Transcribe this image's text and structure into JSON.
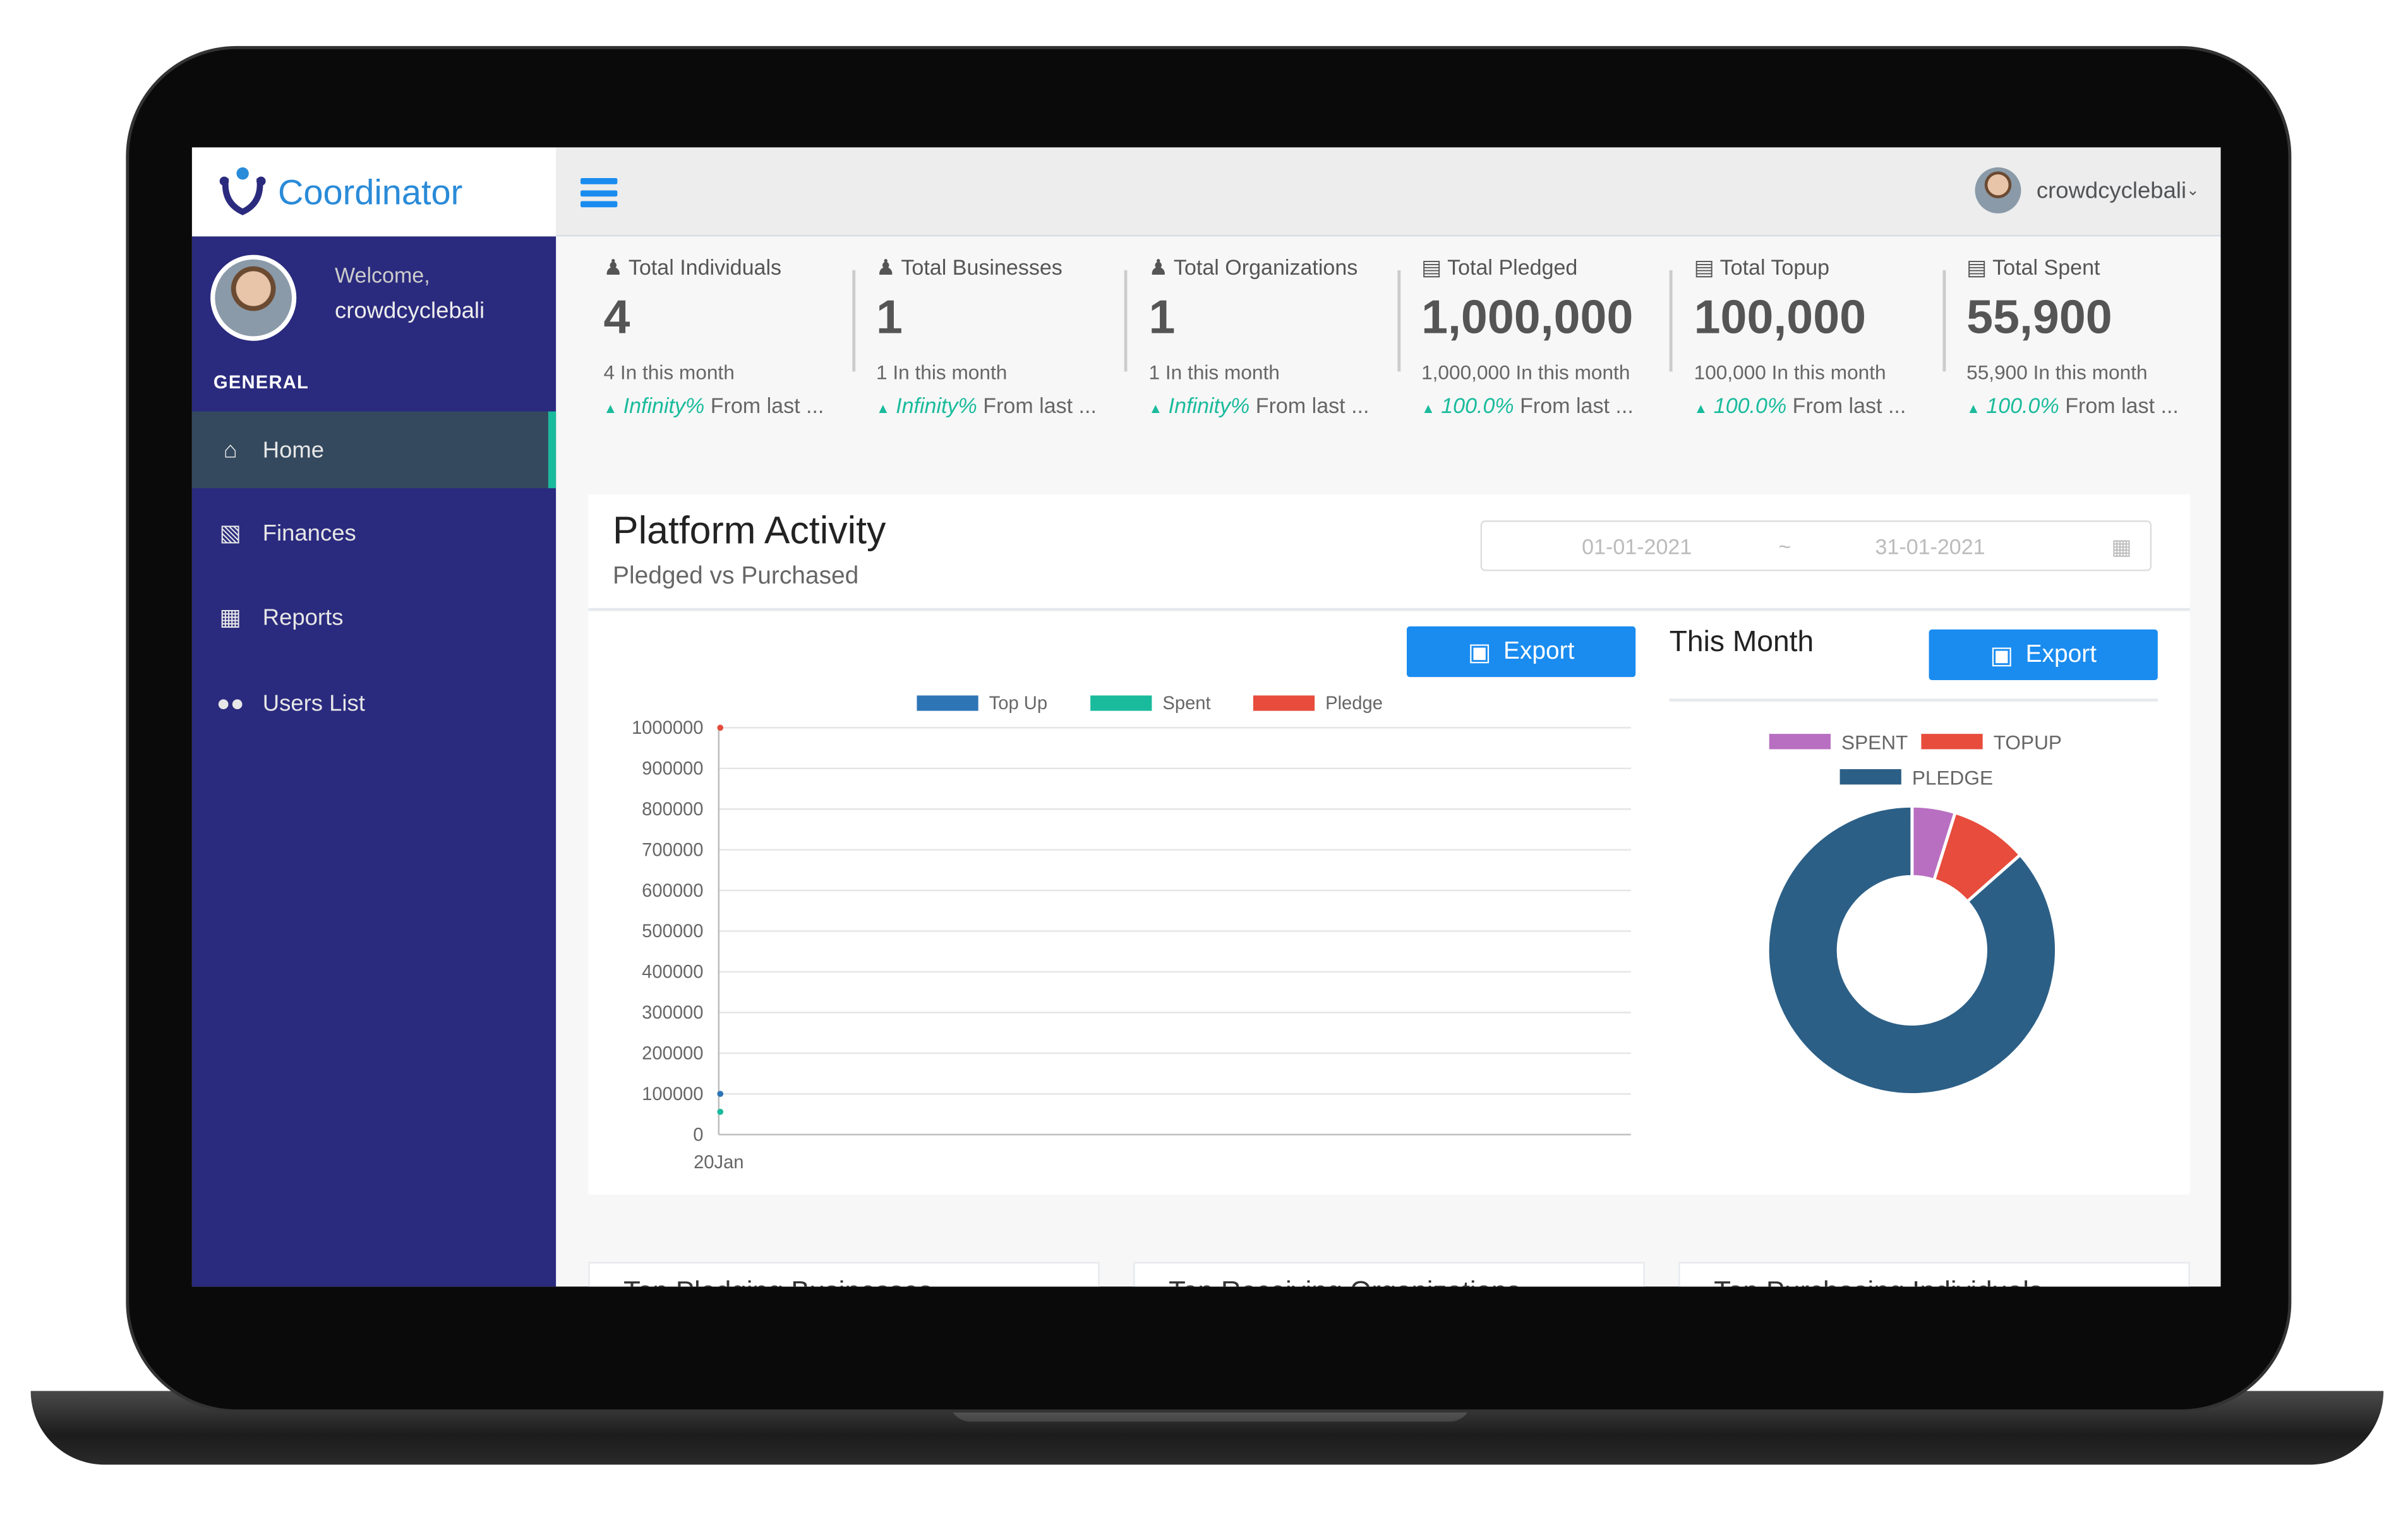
{
  "brand": {
    "name": "Coordinator"
  },
  "sidebar": {
    "welcome": "Welcome,",
    "username": "crowdcyclebali",
    "section": "GENERAL",
    "items": [
      {
        "label": "Home",
        "icon": "home-icon"
      },
      {
        "label": "Finances",
        "icon": "bar-chart-icon"
      },
      {
        "label": "Reports",
        "icon": "table-icon"
      },
      {
        "label": "Users List",
        "icon": "users-icon"
      }
    ]
  },
  "topbar": {
    "username": "crowdcyclebali"
  },
  "stats": [
    {
      "title": "Total Individuals",
      "icon": "user-icon",
      "value": "4",
      "month": "4 In this month",
      "change": "Infinity%",
      "change_suffix": "From last ..."
    },
    {
      "title": "Total Businesses",
      "icon": "user-icon",
      "value": "1",
      "month": "1 In this month",
      "change": "Infinity%",
      "change_suffix": "From last ..."
    },
    {
      "title": "Total Organizations",
      "icon": "user-icon",
      "value": "1",
      "month": "1 In this month",
      "change": "Infinity%",
      "change_suffix": "From last ..."
    },
    {
      "title": "Total Pledged",
      "icon": "money-icon",
      "value": "1,000,000",
      "month": "1,000,000 In this month",
      "change": "100.0%",
      "change_suffix": "From last ..."
    },
    {
      "title": "Total Topup",
      "icon": "money-icon",
      "value": "100,000",
      "month": "100,000 In this month",
      "change": "100.0%",
      "change_suffix": "From last ..."
    },
    {
      "title": "Total Spent",
      "icon": "money-icon",
      "value": "55,900",
      "month": "55,900 In this month",
      "change": "100.0%",
      "change_suffix": "From last ..."
    }
  ],
  "panel": {
    "title": "Platform Activity",
    "subtitle": "Pledged vs Purchased",
    "date_from": "01-01-2021",
    "date_sep": "~",
    "date_to": "31-01-2021",
    "export_label": "Export",
    "this_month": "This Month"
  },
  "bottom_cards": [
    "Top Pledging Businesses",
    "Top Receiving Organizations",
    "Top Purchasing Individuals"
  ],
  "colors": {
    "accent": "#1a8cf0",
    "sidebar": "#2a2a7e",
    "success": "#1abb9c"
  },
  "chart_data": [
    {
      "type": "line",
      "categories": [
        "20Jan"
      ],
      "ylim": [
        0,
        1000000
      ],
      "yticks": [
        "0",
        "100000",
        "200000",
        "300000",
        "400000",
        "500000",
        "600000",
        "700000",
        "800000",
        "900000",
        "1000000"
      ],
      "legend": "top",
      "grid": true,
      "series": [
        {
          "name": "Top Up",
          "color": "#2e75b6",
          "values": [
            100000
          ]
        },
        {
          "name": "Spent",
          "color": "#1abb9c",
          "values": [
            55900
          ]
        },
        {
          "name": "Pledge",
          "color": "#e74c3c",
          "values": [
            1000000
          ]
        }
      ]
    },
    {
      "type": "pie",
      "donut": true,
      "legend": "top",
      "slices": [
        {
          "name": "SPENT",
          "value": 55900,
          "color": "#b86fc1"
        },
        {
          "name": "TOPUP",
          "value": 100000,
          "color": "#e74c3c"
        },
        {
          "name": "PLEDGE",
          "value": 1000000,
          "color": "#2c5f86"
        }
      ]
    }
  ]
}
